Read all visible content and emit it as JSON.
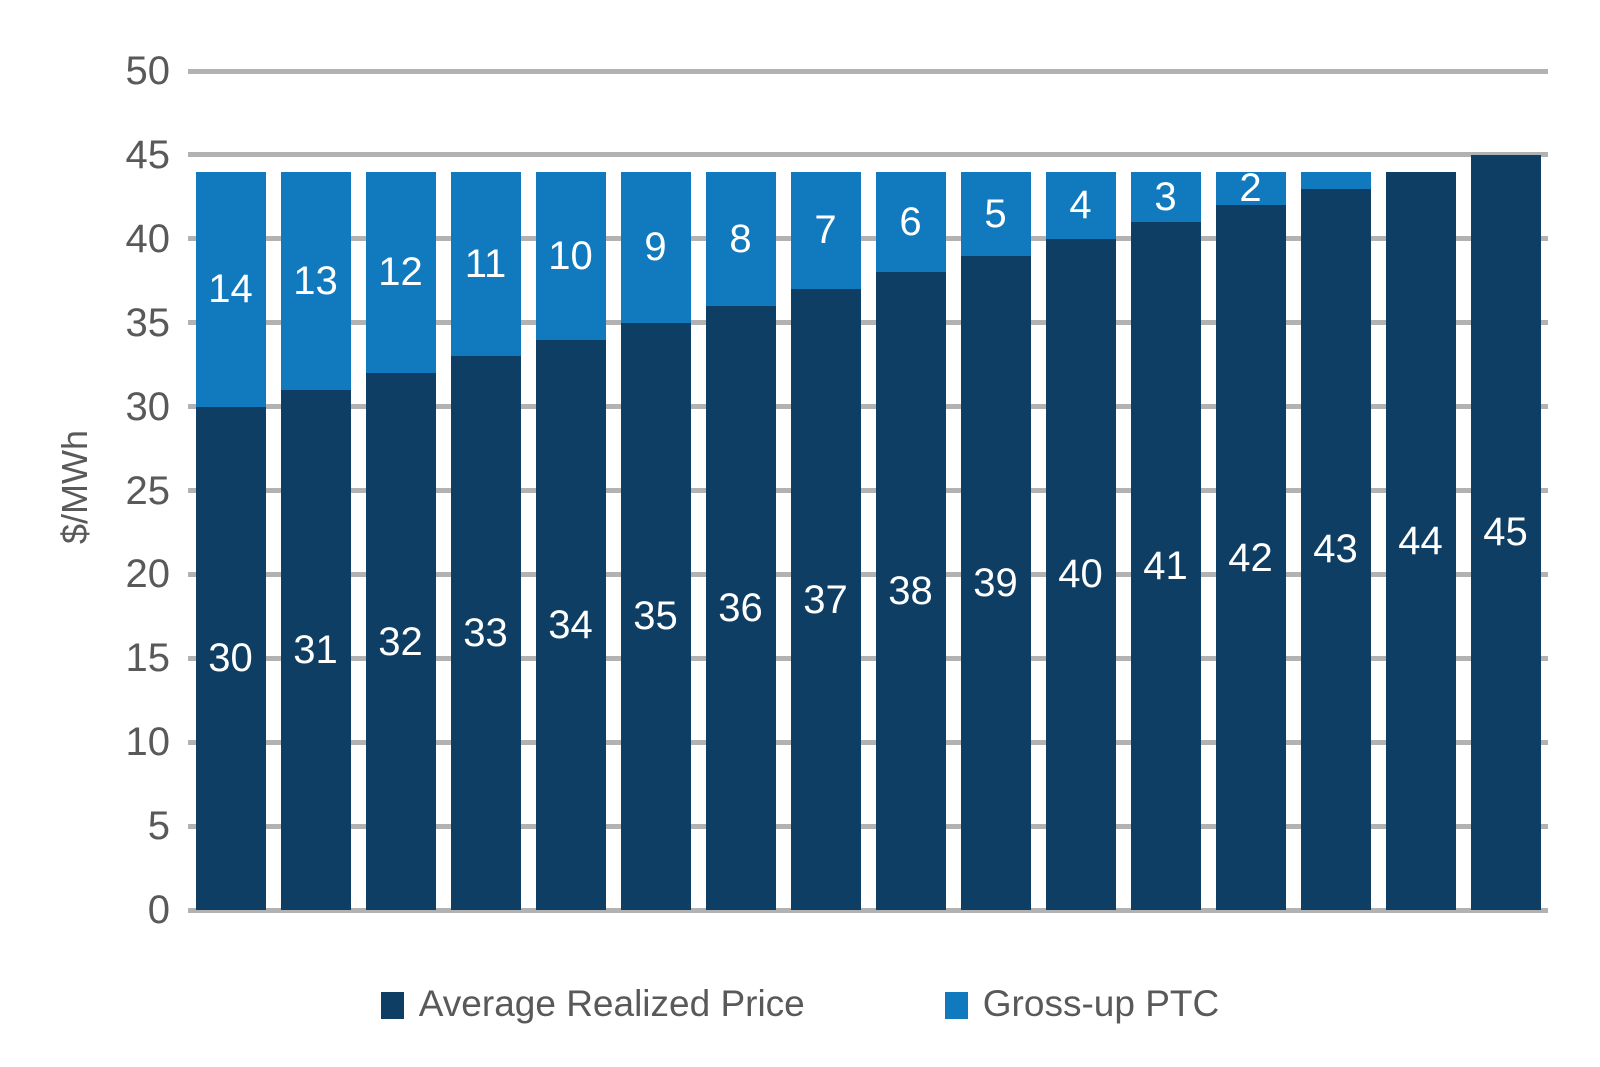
{
  "chart_data": {
    "type": "bar",
    "stacked": true,
    "title": "",
    "ylabel": "$/MWh",
    "ylim": [
      0,
      50
    ],
    "yticks": [
      0,
      5,
      10,
      15,
      20,
      25,
      30,
      35,
      40,
      45,
      50
    ],
    "grid": true,
    "legend_position": "bottom",
    "series": [
      {
        "name": "Average Realized Price",
        "color": "#0e3e63",
        "values": [
          30,
          31,
          32,
          33,
          34,
          35,
          36,
          37,
          38,
          39,
          40,
          41,
          42,
          43,
          44,
          45
        ],
        "labels": [
          "30",
          "31",
          "32",
          "33",
          "34",
          "35",
          "36",
          "37",
          "38",
          "39",
          "40",
          "41",
          "42",
          "43",
          "44",
          "45"
        ]
      },
      {
        "name": "Gross-up PTC",
        "color": "#1179be",
        "values": [
          14,
          13,
          12,
          11,
          10,
          9,
          8,
          7,
          6,
          5,
          4,
          3,
          2,
          1,
          0,
          0
        ],
        "labels": [
          "14",
          "13",
          "12",
          "11",
          "10",
          "9",
          "8",
          "7",
          "6",
          "5",
          "4",
          "3",
          "2",
          "",
          "",
          ""
        ]
      }
    ]
  },
  "style": {
    "grid_color": "#b2b2b2",
    "axis_text_color": "#595959",
    "bar_label_color": "#ffffff",
    "background": "#ffffff"
  }
}
